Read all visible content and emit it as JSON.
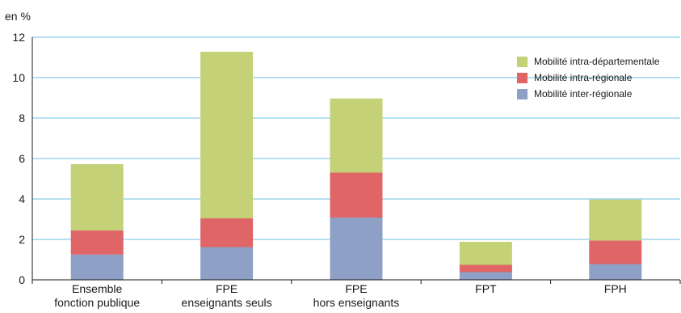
{
  "chart_data": {
    "type": "bar",
    "stacked": true,
    "unit_label": "en %",
    "categories": [
      [
        "Ensemble",
        "fonction publique"
      ],
      [
        "FPE",
        "enseignants seuls"
      ],
      [
        "FPE",
        "hors enseignants"
      ],
      [
        "FPT",
        ""
      ],
      [
        "FPH",
        ""
      ]
    ],
    "series": [
      {
        "name": "Mobilité inter-régionale",
        "color": "#8fa0c6",
        "values": [
          1.25,
          1.62,
          3.08,
          0.38,
          0.78
        ]
      },
      {
        "name": "Mobilité intra-régionale",
        "color": "#df6566",
        "values": [
          1.2,
          1.42,
          2.22,
          0.36,
          1.16
        ]
      },
      {
        "name": "Mobilité intra-départementale",
        "color": "#c4d176",
        "values": [
          3.27,
          8.24,
          3.67,
          1.14,
          2.03
        ]
      }
    ],
    "legend_order": [
      2,
      1,
      0
    ],
    "yticks": [
      0,
      2,
      4,
      6,
      8,
      10,
      12
    ],
    "ylim": [
      0,
      12
    ],
    "grid": true,
    "legend_position": "top-right"
  }
}
